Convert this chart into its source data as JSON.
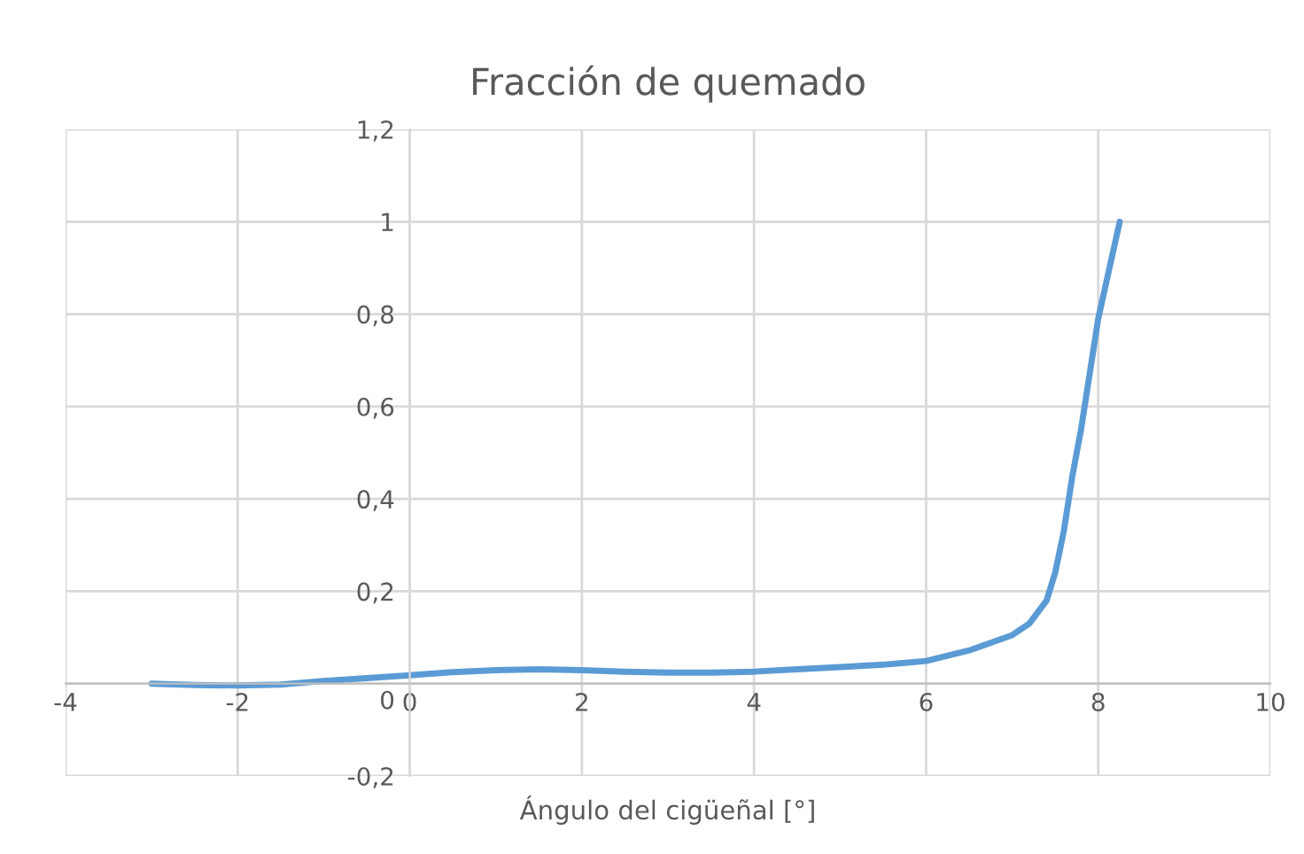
{
  "chart_data": {
    "type": "line",
    "title": "Fracción de quemado",
    "xlabel": "Ángulo del cigüeñal [°]",
    "series": [
      {
        "color": "#5b9bd5",
        "x": [
          -3,
          -2.5,
          -2,
          -1.5,
          -1,
          -0.5,
          0,
          0.5,
          1,
          1.5,
          2,
          2.5,
          3,
          3.5,
          4,
          4.5,
          5,
          5.5,
          6,
          6.5,
          7,
          7.2,
          7.4,
          7.5,
          7.6,
          7.7,
          7.8,
          8,
          8.25
        ],
        "values": [
          0,
          -0.003,
          -0.004,
          -0.002,
          0.006,
          0.012,
          0.018,
          0.025,
          0.029,
          0.031,
          0.029,
          0.026,
          0.024,
          0.024,
          0.026,
          0.031,
          0.036,
          0.041,
          0.049,
          0.072,
          0.105,
          0.13,
          0.18,
          0.24,
          0.33,
          0.45,
          0.55,
          0.79,
          1.0
        ]
      }
    ],
    "xlim": [
      -4,
      10
    ],
    "xticks": [
      {
        "value": -4,
        "label": "-4"
      },
      {
        "value": -2,
        "label": "-2"
      },
      0,
      2,
      4,
      6,
      8,
      10
    ],
    "ylim": [
      -0.2,
      1.2
    ],
    "yticks": [
      {
        "value": -0.2,
        "label": "-0,2"
      },
      0,
      {
        "value": 0.2,
        "label": "0,2"
      },
      {
        "value": 0.4,
        "label": "0,4"
      },
      {
        "value": 0.6,
        "label": "0,6"
      },
      {
        "value": 0.8,
        "label": "0,8"
      },
      1,
      {
        "value": 1.2,
        "label": "1,2"
      }
    ],
    "grid": true,
    "marker": "none",
    "line_style": "solid"
  }
}
